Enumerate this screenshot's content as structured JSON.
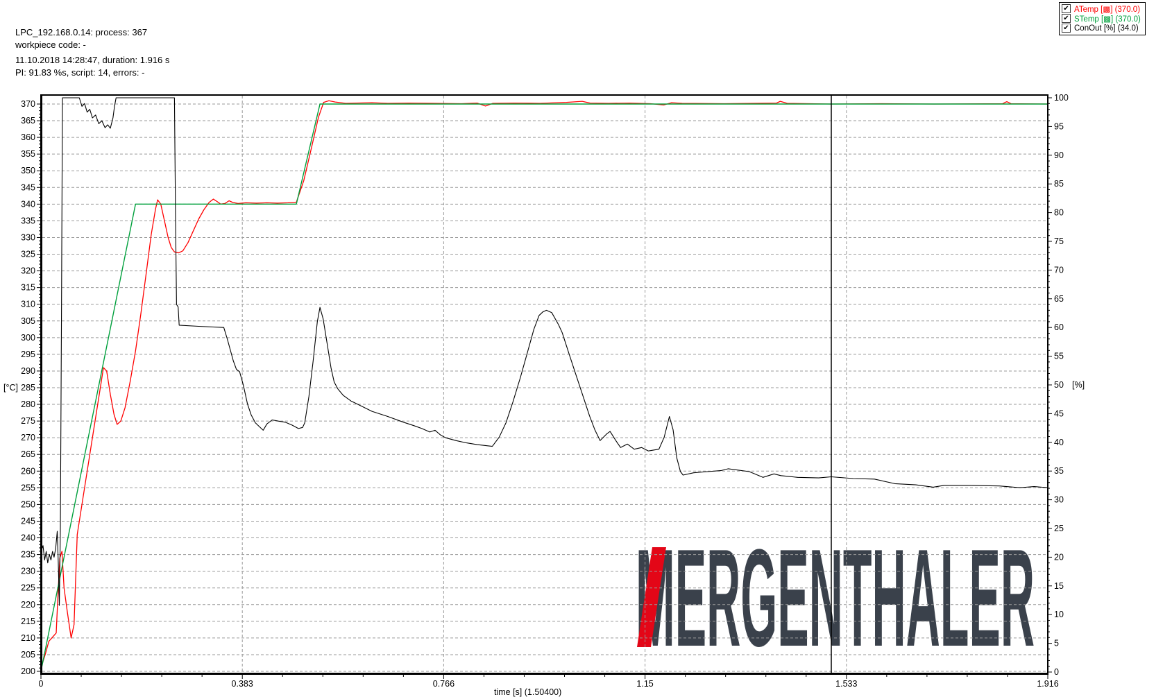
{
  "header": {
    "line1": "LPC_192.168.0.14: process: 367",
    "line2": "workpiece code: -",
    "line3": "11.10.2018 14:28:47, duration: 1.916 s",
    "line4": "PI: 91.83 %s, script: 14, errors: -"
  },
  "legend": {
    "checkbox_glyph": "✔",
    "items": [
      {
        "label": "ATemp [▩] (370.0)",
        "checked": true,
        "color": "#ff0000"
      },
      {
        "label": "STemp [▩] (370.0)",
        "checked": true,
        "color": "#00A03C"
      },
      {
        "label": "ConOut [%] (34.0)",
        "checked": true,
        "color": "#000000"
      }
    ]
  },
  "logo": {
    "text": "MERGENTHALER",
    "color": "#3A414B",
    "accent_color": "#E30617"
  },
  "chart_data": {
    "type": "line",
    "grid": true,
    "cursor_time": 1.504,
    "x_axis": {
      "label": "time [s] (1.50400)",
      "min": 0,
      "max": 1.916,
      "tick_values": [
        0,
        0.3832,
        0.7664,
        1.1496,
        1.5328,
        1.916
      ],
      "tick_labels": [
        "0",
        "0.383",
        "0.766",
        "1.15",
        "1.533",
        "1.916"
      ]
    },
    "y_left": {
      "unit": "[°C]",
      "min": 200,
      "max": 370,
      "step": 5
    },
    "y_right": {
      "unit": "[%]",
      "min": 0,
      "max": 100,
      "step": 5
    },
    "series": [
      {
        "name": "ATemp",
        "axis": "left",
        "color": "#ff0000",
        "value_at_cursor": 370.0,
        "points": [
          [
            0,
            201
          ],
          [
            0.008,
            205
          ],
          [
            0.015,
            209
          ],
          [
            0.029,
            211.5
          ],
          [
            0.033,
            225
          ],
          [
            0.036,
            234
          ],
          [
            0.04,
            236
          ],
          [
            0.044,
            225
          ],
          [
            0.05,
            218
          ],
          [
            0.0575,
            210
          ],
          [
            0.063,
            214
          ],
          [
            0.069,
            241
          ],
          [
            0.08,
            252
          ],
          [
            0.1,
            272
          ],
          [
            0.115,
            287
          ],
          [
            0.119,
            291
          ],
          [
            0.125,
            290
          ],
          [
            0.132,
            283
          ],
          [
            0.139,
            277
          ],
          [
            0.145,
            274
          ],
          [
            0.152,
            275
          ],
          [
            0.16,
            279
          ],
          [
            0.17,
            287
          ],
          [
            0.18,
            296
          ],
          [
            0.19,
            307
          ],
          [
            0.2,
            319
          ],
          [
            0.21,
            331
          ],
          [
            0.218,
            338.5
          ],
          [
            0.222,
            341.3
          ],
          [
            0.228,
            340
          ],
          [
            0.235,
            335
          ],
          [
            0.242,
            330
          ],
          [
            0.248,
            327
          ],
          [
            0.254,
            325.7
          ],
          [
            0.262,
            325.4
          ],
          [
            0.27,
            326
          ],
          [
            0.28,
            328.5
          ],
          [
            0.29,
            332
          ],
          [
            0.3,
            335.5
          ],
          [
            0.31,
            338.3
          ],
          [
            0.32,
            340.5
          ],
          [
            0.328,
            341.5
          ],
          [
            0.335,
            340.8
          ],
          [
            0.342,
            340
          ],
          [
            0.35,
            340.2
          ],
          [
            0.358,
            341
          ],
          [
            0.365,
            340.5
          ],
          [
            0.375,
            340.2
          ],
          [
            0.39,
            340.4
          ],
          [
            0.41,
            340.3
          ],
          [
            0.43,
            340.4
          ],
          [
            0.45,
            340.3
          ],
          [
            0.47,
            340.4
          ],
          [
            0.486,
            340.6
          ],
          [
            0.5,
            347
          ],
          [
            0.515,
            357
          ],
          [
            0.528,
            366
          ],
          [
            0.538,
            370.5
          ],
          [
            0.548,
            371
          ],
          [
            0.56,
            370.6
          ],
          [
            0.58,
            370.2
          ],
          [
            0.6,
            370.3
          ],
          [
            0.63,
            370.4
          ],
          [
            0.66,
            370.2
          ],
          [
            0.7,
            370.3
          ],
          [
            0.75,
            370.2
          ],
          [
            0.8,
            370.1
          ],
          [
            0.83,
            370.3
          ],
          [
            0.846,
            369.4
          ],
          [
            0.86,
            370.2
          ],
          [
            0.9,
            370.3
          ],
          [
            0.95,
            370.2
          ],
          [
            1.0,
            370.5
          ],
          [
            1.03,
            370.8
          ],
          [
            1.045,
            370.3
          ],
          [
            1.08,
            370.2
          ],
          [
            1.12,
            370.3
          ],
          [
            1.16,
            370.1
          ],
          [
            1.185,
            369.7
          ],
          [
            1.2,
            370.4
          ],
          [
            1.22,
            370.2
          ],
          [
            1.3,
            370.1
          ],
          [
            1.4,
            370.3
          ],
          [
            1.407,
            370.8
          ],
          [
            1.42,
            370.2
          ],
          [
            1.504,
            370.0
          ],
          [
            1.6,
            370.1
          ],
          [
            1.7,
            370.0
          ],
          [
            1.83,
            370.1
          ],
          [
            1.838,
            370.7
          ],
          [
            1.846,
            370.1
          ],
          [
            1.916,
            370.0
          ]
        ]
      },
      {
        "name": "STemp",
        "axis": "left",
        "color": "#00A03C",
        "value_at_cursor": 370.0,
        "points": [
          [
            0,
            200
          ],
          [
            0.18,
            340
          ],
          [
            0.486,
            340
          ],
          [
            0.531,
            370
          ],
          [
            1.916,
            370
          ]
        ]
      },
      {
        "name": "ConOut",
        "axis": "right",
        "color": "#000000",
        "value_at_cursor": 34.0,
        "points": [
          [
            0,
            21
          ],
          [
            0.004,
            22
          ],
          [
            0.007,
            19.5
          ],
          [
            0.01,
            21
          ],
          [
            0.013,
            19
          ],
          [
            0.016,
            20.5
          ],
          [
            0.019,
            19.5
          ],
          [
            0.022,
            21
          ],
          [
            0.025,
            20
          ],
          [
            0.028,
            21.5
          ],
          [
            0.031,
            24.5
          ],
          [
            0.033,
            19
          ],
          [
            0.035,
            11.6
          ],
          [
            0.037,
            25
          ],
          [
            0.039,
            60
          ],
          [
            0.041,
            100
          ],
          [
            0.073,
            100
          ],
          [
            0.078,
            98.5
          ],
          [
            0.083,
            99
          ],
          [
            0.088,
            97.5
          ],
          [
            0.093,
            98
          ],
          [
            0.098,
            96.5
          ],
          [
            0.104,
            97
          ],
          [
            0.11,
            95.5
          ],
          [
            0.116,
            96
          ],
          [
            0.122,
            94.8
          ],
          [
            0.127,
            95.3
          ],
          [
            0.132,
            94.7
          ],
          [
            0.137,
            96.5
          ],
          [
            0.14,
            98.5
          ],
          [
            0.143,
            100
          ],
          [
            0.254,
            100
          ],
          [
            0.256,
            80
          ],
          [
            0.258,
            64
          ],
          [
            0.261,
            63.6
          ],
          [
            0.263,
            60.4
          ],
          [
            0.3,
            60.2
          ],
          [
            0.348,
            60
          ],
          [
            0.355,
            57.9
          ],
          [
            0.366,
            54.2
          ],
          [
            0.372,
            52.7
          ],
          [
            0.378,
            52.3
          ],
          [
            0.385,
            50
          ],
          [
            0.393,
            46.7
          ],
          [
            0.4,
            44.8
          ],
          [
            0.408,
            43.4
          ],
          [
            0.416,
            42.7
          ],
          [
            0.423,
            42.1
          ],
          [
            0.43,
            43.2
          ],
          [
            0.44,
            43.9
          ],
          [
            0.452,
            43.7
          ],
          [
            0.465,
            43.5
          ],
          [
            0.478,
            43
          ],
          [
            0.49,
            42.4
          ],
          [
            0.498,
            42.6
          ],
          [
            0.502,
            43.4
          ],
          [
            0.51,
            48
          ],
          [
            0.518,
            54.2
          ],
          [
            0.526,
            61
          ],
          [
            0.531,
            63.5
          ],
          [
            0.537,
            61.5
          ],
          [
            0.545,
            57
          ],
          [
            0.552,
            53
          ],
          [
            0.558,
            50.5
          ],
          [
            0.565,
            49.3
          ],
          [
            0.575,
            48.2
          ],
          [
            0.59,
            47.2
          ],
          [
            0.61,
            46.3
          ],
          [
            0.63,
            45.4
          ],
          [
            0.66,
            44.5
          ],
          [
            0.69,
            43.5
          ],
          [
            0.71,
            42.9
          ],
          [
            0.725,
            42.4
          ],
          [
            0.74,
            41.8
          ],
          [
            0.75,
            42.1
          ],
          [
            0.76,
            41.3
          ],
          [
            0.77,
            40.8
          ],
          [
            0.79,
            40.3
          ],
          [
            0.81,
            39.9
          ],
          [
            0.83,
            39.6
          ],
          [
            0.85,
            39.4
          ],
          [
            0.859,
            39.3
          ],
          [
            0.872,
            40.9
          ],
          [
            0.885,
            43.4
          ],
          [
            0.898,
            47
          ],
          [
            0.912,
            51.2
          ],
          [
            0.925,
            55.4
          ],
          [
            0.938,
            59.7
          ],
          [
            0.948,
            62.1
          ],
          [
            0.955,
            62.7
          ],
          [
            0.962,
            63
          ],
          [
            0.972,
            62.6
          ],
          [
            0.985,
            60.5
          ],
          [
            0.992,
            59.1
          ],
          [
            1.005,
            55.4
          ],
          [
            1.018,
            51.8
          ],
          [
            1.031,
            48.2
          ],
          [
            1.044,
            44.6
          ],
          [
            1.054,
            42.2
          ],
          [
            1.064,
            40.3
          ],
          [
            1.077,
            41.5
          ],
          [
            1.083,
            41.9
          ],
          [
            1.094,
            40.3
          ],
          [
            1.103,
            39.1
          ],
          [
            1.116,
            39.7
          ],
          [
            1.129,
            38.8
          ],
          [
            1.143,
            39.1
          ],
          [
            1.156,
            38.5
          ],
          [
            1.176,
            38.8
          ],
          [
            1.186,
            40.9
          ],
          [
            1.196,
            44.5
          ],
          [
            1.203,
            42.2
          ],
          [
            1.21,
            37.3
          ],
          [
            1.217,
            34.9
          ],
          [
            1.222,
            34.3
          ],
          [
            1.242,
            34.7
          ],
          [
            1.269,
            34.9
          ],
          [
            1.295,
            35.1
          ],
          [
            1.308,
            35.4
          ],
          [
            1.348,
            34.9
          ],
          [
            1.374,
            33.9
          ],
          [
            1.395,
            34.5
          ],
          [
            1.408,
            34.2
          ],
          [
            1.44,
            33.9
          ],
          [
            1.48,
            33.8
          ],
          [
            1.504,
            34
          ],
          [
            1.546,
            33.7
          ],
          [
            1.586,
            33.6
          ],
          [
            1.625,
            32.8
          ],
          [
            1.665,
            32.6
          ],
          [
            1.698,
            32.2
          ],
          [
            1.718,
            32.5
          ],
          [
            1.771,
            32.5
          ],
          [
            1.824,
            32.4
          ],
          [
            1.863,
            32.1
          ],
          [
            1.89,
            32.3
          ],
          [
            1.916,
            32.1
          ]
        ]
      }
    ]
  }
}
